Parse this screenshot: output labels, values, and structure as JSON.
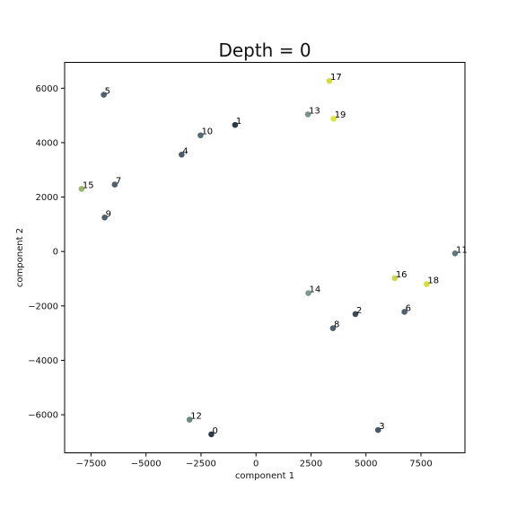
{
  "chart_data": {
    "type": "scatter",
    "title": "Depth = 0",
    "xlabel": "component 1",
    "ylabel": "component 2",
    "xlim": [
      -8700,
      9500
    ],
    "ylim": [
      -7400,
      6950
    ],
    "xticks": [
      -7500,
      -5000,
      -2500,
      0,
      2500,
      5000,
      7500
    ],
    "xtick_labels": [
      "−7500",
      "−5000",
      "−2500",
      "0",
      "2500",
      "5000",
      "7500"
    ],
    "yticks": [
      -6000,
      -4000,
      -2000,
      0,
      2000,
      4000,
      6000
    ],
    "ytick_labels": [
      "−6000",
      "−4000",
      "−2000",
      "0",
      "2000",
      "4000",
      "6000"
    ],
    "grid": false,
    "points": [
      {
        "label": "0",
        "x": -2030,
        "y": -6720,
        "color": "#2f3a42"
      },
      {
        "label": "1",
        "x": -950,
        "y": 4650,
        "color": "#2f3a42"
      },
      {
        "label": "2",
        "x": 4520,
        "y": -2300,
        "color": "#3d4a55"
      },
      {
        "label": "3",
        "x": 5550,
        "y": -6560,
        "color": "#4a5a66"
      },
      {
        "label": "4",
        "x": -3380,
        "y": 3560,
        "color": "#4a5a66"
      },
      {
        "label": "5",
        "x": -6920,
        "y": 5760,
        "color": "#4f6170"
      },
      {
        "label": "6",
        "x": 6750,
        "y": -2220,
        "color": "#4f6170"
      },
      {
        "label": "7",
        "x": -6420,
        "y": 2460,
        "color": "#4f6170"
      },
      {
        "label": "8",
        "x": 3500,
        "y": -2820,
        "color": "#4f6170"
      },
      {
        "label": "9",
        "x": -6880,
        "y": 1250,
        "color": "#4f6170"
      },
      {
        "label": "10",
        "x": -2520,
        "y": 4270,
        "color": "#566a78"
      },
      {
        "label": "11",
        "x": 9050,
        "y": -70,
        "color": "#5f7a7c"
      },
      {
        "label": "12",
        "x": -3020,
        "y": -6180,
        "color": "#6a8a80"
      },
      {
        "label": "13",
        "x": 2360,
        "y": 5040,
        "color": "#7a9488"
      },
      {
        "label": "14",
        "x": 2380,
        "y": -1530,
        "color": "#7f9990"
      },
      {
        "label": "15",
        "x": -7930,
        "y": 2300,
        "color": "#9bb56a"
      },
      {
        "label": "16",
        "x": 6310,
        "y": -980,
        "color": "#c8d84a"
      },
      {
        "label": "17",
        "x": 3340,
        "y": 6270,
        "color": "#d2de3a"
      },
      {
        "label": "18",
        "x": 7760,
        "y": -1200,
        "color": "#d4e03a"
      },
      {
        "label": "19",
        "x": 3530,
        "y": 4880,
        "color": "#dce634"
      }
    ]
  }
}
